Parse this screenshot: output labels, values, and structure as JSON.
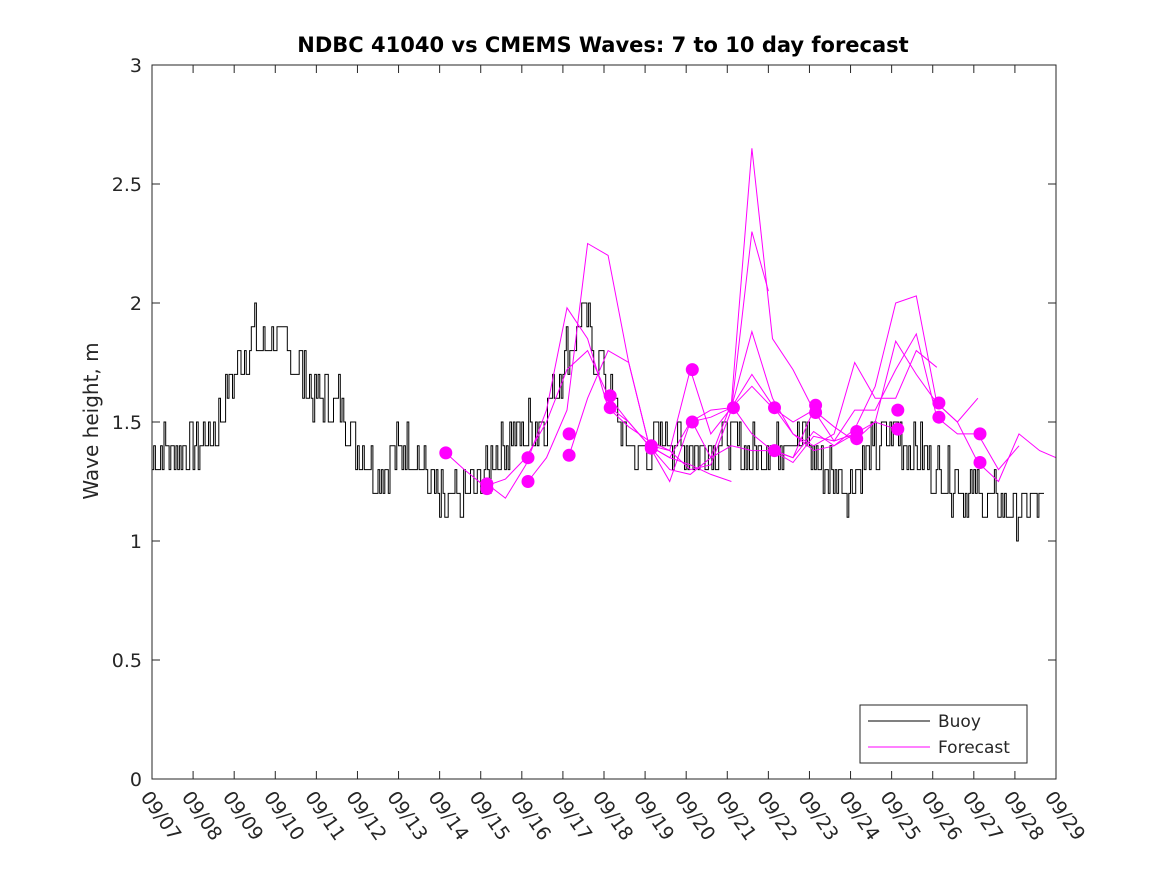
{
  "chart_data": {
    "type": "line",
    "title": "NDBC 41040 vs CMEMS Waves: 7 to 10 day forecast",
    "xlabel": "",
    "ylabel": "Wave height, m",
    "xlim": [
      0,
      22
    ],
    "ylim": [
      0,
      3
    ],
    "grid": false,
    "legend_position": "bottom-right",
    "x_tick_labels": [
      "09/07",
      "09/08",
      "09/09",
      "09/10",
      "09/11",
      "09/12",
      "09/13",
      "09/14",
      "09/15",
      "09/16",
      "09/17",
      "09/18",
      "09/19",
      "09/20",
      "09/21",
      "09/22",
      "09/23",
      "09/24",
      "09/25",
      "09/26",
      "09/27",
      "09/28",
      "09/29"
    ],
    "y_ticks": [
      0,
      0.5,
      1,
      1.5,
      2,
      2.5,
      3
    ],
    "y_tick_labels": [
      "0",
      "0.5",
      "1",
      "1.5",
      "2",
      "2.5",
      "3"
    ],
    "colors": {
      "buoy": "#000000",
      "forecast": "#ff00ff",
      "axes": "#262626"
    },
    "series": [
      {
        "name": "Buoy",
        "x": [
          0,
          0.5,
          1,
          1.5,
          2,
          2.5,
          3,
          3.5,
          4,
          4.5,
          5,
          5.5,
          6,
          6.5,
          7,
          7.5,
          8,
          8.5,
          9,
          9.5,
          10,
          10.5,
          11,
          11.5,
          12,
          12.5,
          13,
          13.5,
          14,
          14.5,
          15,
          15.5,
          16,
          16.5,
          17,
          17.5,
          18,
          18.5,
          19,
          19.5,
          20,
          20.5,
          21,
          21.5,
          21.75
        ],
        "y": [
          1.35,
          1.38,
          1.4,
          1.45,
          1.7,
          1.85,
          1.85,
          1.75,
          1.6,
          1.6,
          1.4,
          1.3,
          1.4,
          1.35,
          1.15,
          1.15,
          1.25,
          1.4,
          1.45,
          1.5,
          1.75,
          1.95,
          1.7,
          1.4,
          1.35,
          1.45,
          1.4,
          1.4,
          1.45,
          1.35,
          1.4,
          1.45,
          1.4,
          1.3,
          1.25,
          1.35,
          1.45,
          1.4,
          1.3,
          1.25,
          1.2,
          1.15,
          1.1,
          1.15,
          1.15
        ]
      },
      {
        "name": "Forecast",
        "runs": [
          {
            "x": [
              7.15,
              7.6,
              8.1,
              8.6,
              9.1,
              9.6,
              10.1,
              10.6,
              11.1,
              11.6,
              12.1,
              12.6,
              13.1,
              13.6,
              14.1
            ],
            "y": [
              1.37,
              1.3,
              1.23,
              1.26,
              1.35,
              1.5,
              1.72,
              1.8,
              1.61,
              1.5,
              1.4,
              1.35,
              1.32,
              1.28,
              1.25
            ]
          },
          {
            "x": [
              8.15,
              8.6,
              9.1,
              9.6,
              10.1,
              10.6,
              11.1,
              11.6,
              12.1,
              12.6,
              13.1,
              13.6,
              14.1,
              14.6,
              15.0
            ],
            "y": [
              1.24,
              1.18,
              1.32,
              1.55,
              1.98,
              1.85,
              1.56,
              1.48,
              1.42,
              1.38,
              1.3,
              1.32,
              1.55,
              2.3,
              2.05
            ]
          },
          {
            "x": [
              9.15,
              9.6,
              10.1,
              10.6,
              11.1,
              11.6,
              12.1,
              12.6,
              13.1,
              13.6,
              14.1,
              14.6,
              15.1,
              15.6,
              16.1
            ],
            "y": [
              1.25,
              1.35,
              1.55,
              2.25,
              2.2,
              1.75,
              1.4,
              1.3,
              1.28,
              1.35,
              1.58,
              2.65,
              1.85,
              1.72,
              1.55
            ]
          },
          {
            "x": [
              10.15,
              10.6,
              11.1,
              11.6,
              12.1,
              12.6,
              13.1,
              13.6,
              14.1,
              14.6,
              15.1,
              15.6,
              16.1,
              16.6,
              17.1
            ],
            "y": [
              1.36,
              1.6,
              1.8,
              1.75,
              1.4,
              1.25,
              1.5,
              1.55,
              1.56,
              1.65,
              1.56,
              1.5,
              1.55,
              1.42,
              1.45
            ]
          },
          {
            "x": [
              11.15,
              11.6,
              12.1,
              12.6,
              13.1,
              13.6,
              14.1,
              14.6,
              15.1,
              15.6,
              16.1,
              16.6,
              17.1,
              17.6,
              18.1
            ],
            "y": [
              1.56,
              1.5,
              1.4,
              1.35,
              1.5,
              1.52,
              1.56,
              1.88,
              1.6,
              1.45,
              1.38,
              1.4,
              1.45,
              1.5,
              1.47
            ]
          },
          {
            "x": [
              12.15,
              12.6,
              13.1,
              13.6,
              14.1,
              14.6,
              15.1,
              15.6,
              16.1,
              16.6,
              17.1,
              17.6,
              18.1,
              18.6,
              19.1
            ],
            "y": [
              1.4,
              1.38,
              1.72,
              1.45,
              1.56,
              1.7,
              1.57,
              1.45,
              1.4,
              1.45,
              1.75,
              1.6,
              1.6,
              1.8,
              1.73
            ]
          },
          {
            "x": [
              13.15,
              13.6,
              14.1,
              14.6,
              15.1,
              15.6,
              16.1,
              16.6,
              17.1,
              17.6,
              18.1,
              18.6,
              19.1,
              19.6,
              20.1
            ],
            "y": [
              1.5,
              1.35,
              1.4,
              1.38,
              1.38,
              1.35,
              1.46,
              1.4,
              1.47,
              1.65,
              2.0,
              2.03,
              1.58,
              1.5,
              1.6
            ]
          },
          {
            "x": [
              14.15,
              14.6,
              15.1,
              15.6,
              16.1,
              16.6,
              17.1,
              17.6,
              18.1,
              18.6,
              19.1,
              19.6,
              20.1,
              20.6,
              21.1
            ],
            "y": [
              1.56,
              1.45,
              1.38,
              1.33,
              1.44,
              1.42,
              1.55,
              1.55,
              1.72,
              1.87,
              1.52,
              1.45,
              1.45,
              1.3,
              1.4
            ]
          },
          {
            "x": [
              15.15,
              15.6,
              16.1,
              16.6,
              17.1,
              17.6,
              18.1,
              18.6,
              19.1,
              19.6,
              20.1,
              20.6,
              21.1,
              21.6,
              22.0
            ],
            "y": [
              1.38,
              1.35,
              1.55,
              1.48,
              1.42,
              1.5,
              1.84,
              1.7,
              1.58,
              1.5,
              1.33,
              1.25,
              1.45,
              1.38,
              1.35
            ]
          }
        ],
        "markers": {
          "x": [
            7.15,
            8.15,
            8.15,
            9.15,
            9.15,
            10.15,
            10.15,
            11.15,
            11.15,
            12.15,
            12.15,
            13.15,
            13.15,
            14.15,
            15.15,
            15.15,
            16.15,
            16.15,
            17.15,
            17.15,
            18.15,
            18.15,
            19.15,
            19.15,
            20.15,
            20.15
          ],
          "y": [
            1.37,
            1.22,
            1.24,
            1.25,
            1.35,
            1.36,
            1.45,
            1.56,
            1.61,
            1.39,
            1.4,
            1.5,
            1.72,
            1.56,
            1.38,
            1.56,
            1.54,
            1.57,
            1.43,
            1.46,
            1.47,
            1.55,
            1.52,
            1.58,
            1.33,
            1.45
          ]
        }
      }
    ],
    "legend": [
      "Buoy",
      "Forecast"
    ]
  }
}
